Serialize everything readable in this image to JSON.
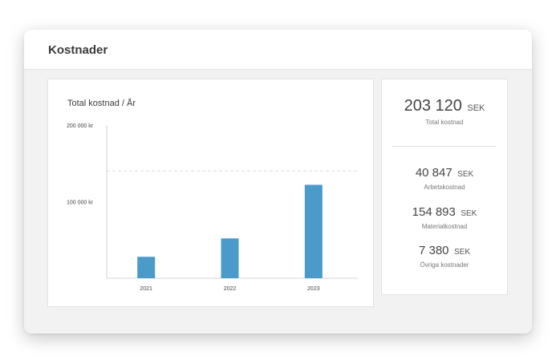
{
  "header": {
    "title": "Kostnader"
  },
  "chart_data": {
    "type": "bar",
    "title": "Total kostnad / År",
    "categories": [
      "2021",
      "2022",
      "2023"
    ],
    "values": [
      28000,
      52000,
      122000
    ],
    "ylim": [
      0,
      200000
    ],
    "y_ticks": [
      {
        "value": 100000,
        "label": "100 000 kr"
      },
      {
        "value": 200000,
        "label": "200 000 kr"
      }
    ],
    "reference_line": 140000,
    "bar_color": "#4a9bca",
    "grid": false
  },
  "stats": {
    "total": {
      "value": "203 120",
      "unit": "SEK",
      "label": "Total kostnad"
    },
    "items": [
      {
        "value": "40 847",
        "unit": "SEK",
        "label": "Arbetskostnad"
      },
      {
        "value": "154 893",
        "unit": "SEK",
        "label": "Materialkostnad"
      },
      {
        "value": "7 380",
        "unit": "SEK",
        "label": "Övriga kostnader"
      }
    ]
  }
}
